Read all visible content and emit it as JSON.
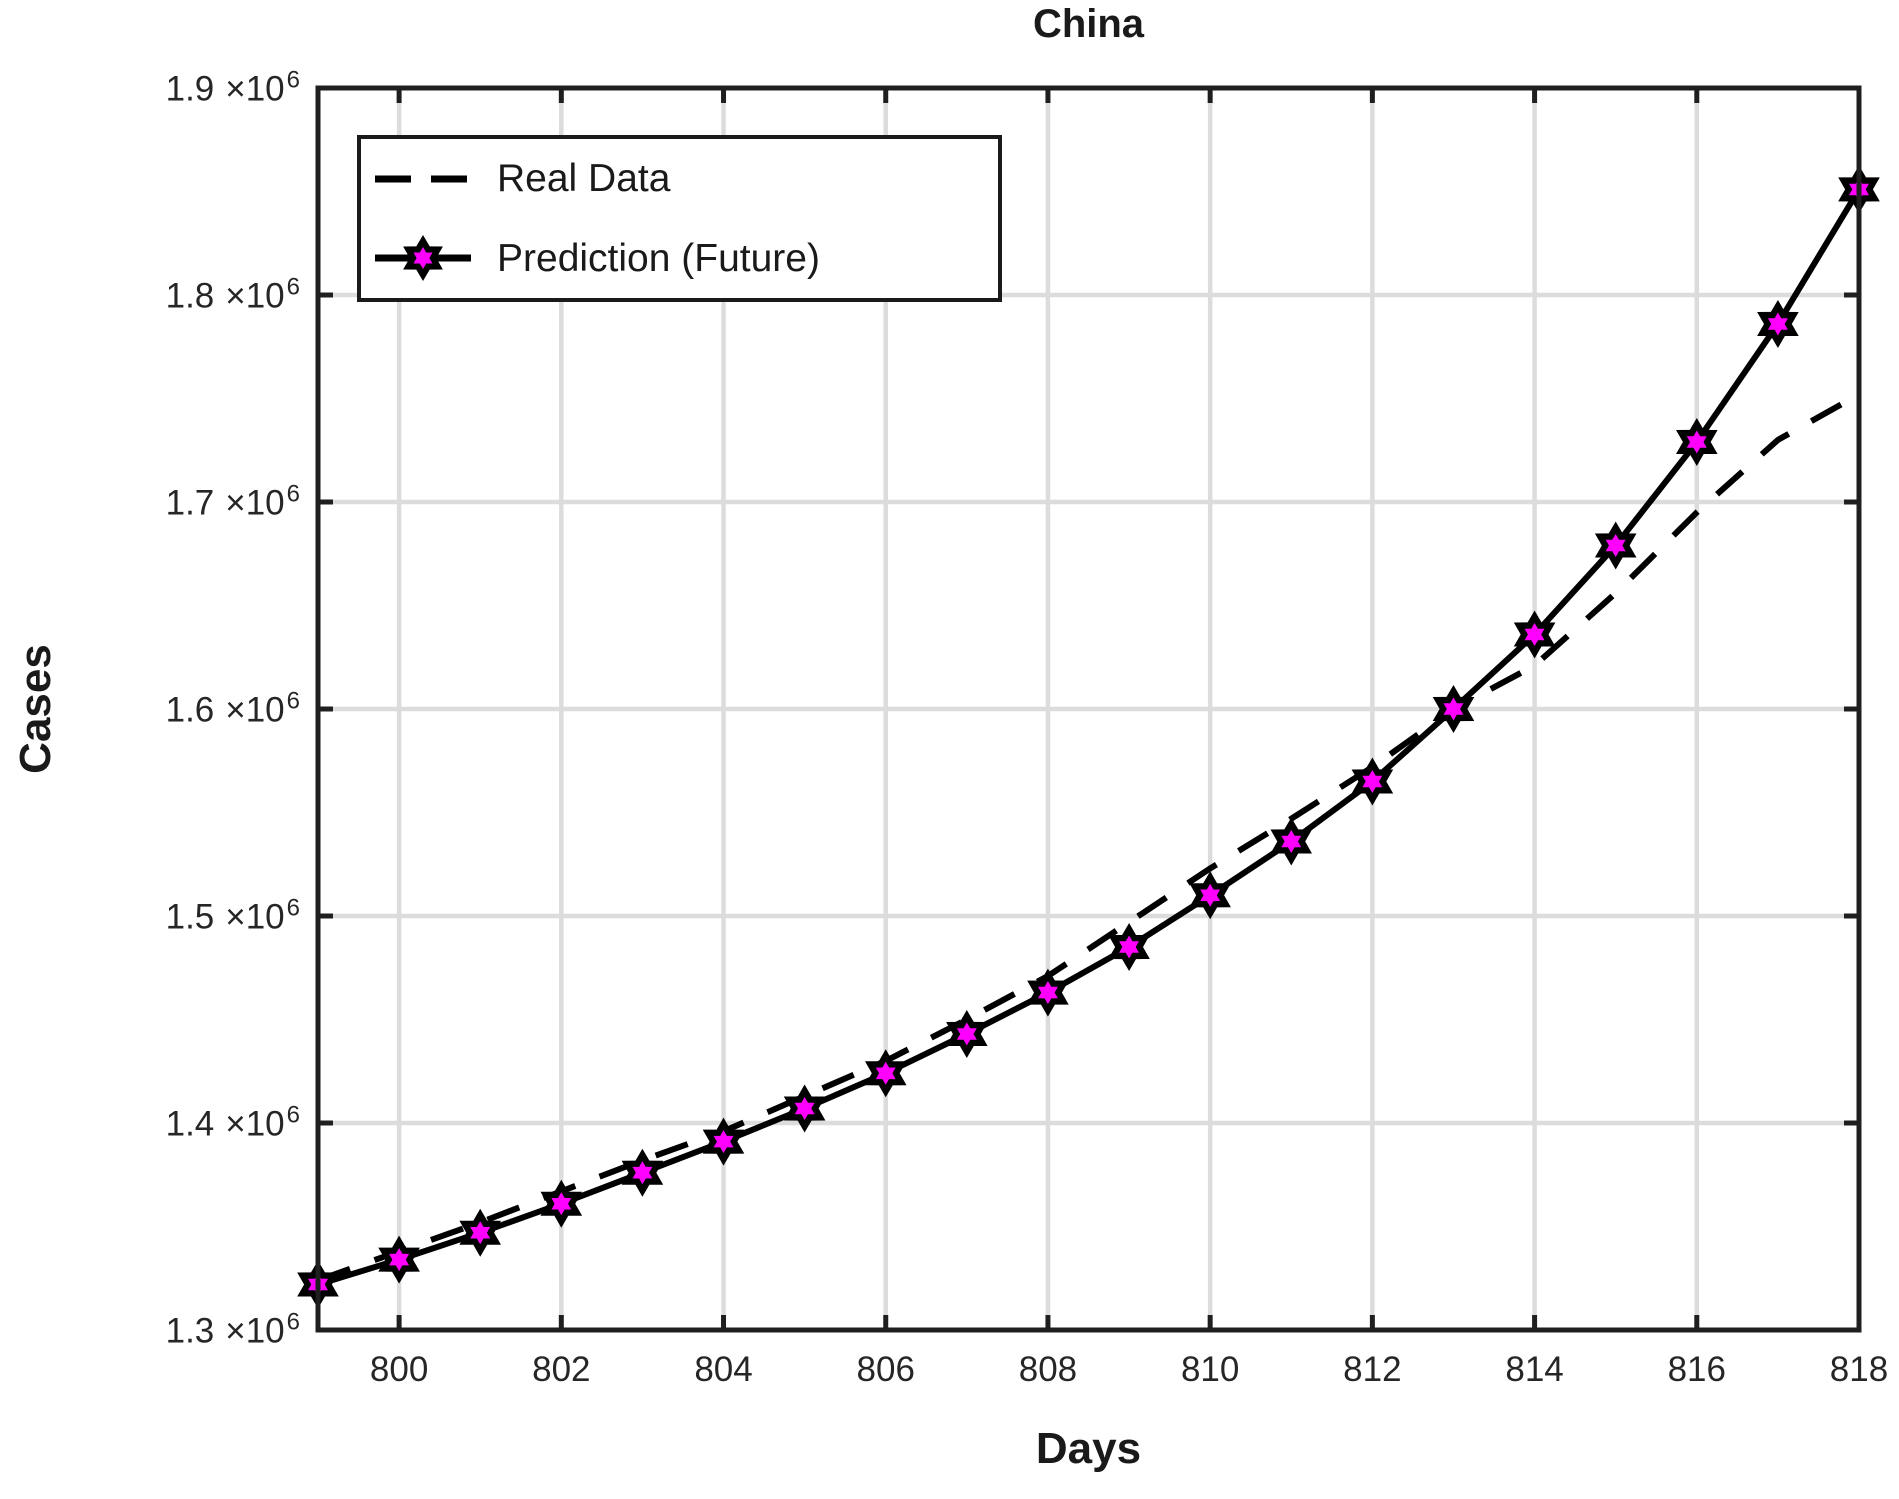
{
  "title": "China",
  "colors": {
    "line": "#000000",
    "marker_face": "#ff00ff",
    "marker_edge": "#000000",
    "grid": "#dcdcdc",
    "axis": "#1f1f1f",
    "text": "#262626",
    "background": "#ffffff"
  },
  "legend": {
    "position": "upper-left",
    "items": [
      {
        "label": "Real Data"
      },
      {
        "label": "Prediction (Future)"
      }
    ]
  },
  "chart_data": {
    "type": "line",
    "title": "China",
    "xlabel": "Days",
    "ylabel": "Cases",
    "xlim": [
      799,
      818
    ],
    "ylim": [
      1300000,
      1900000
    ],
    "xticks": [
      800,
      802,
      804,
      806,
      808,
      810,
      812,
      814,
      816,
      818
    ],
    "yticks": [
      1300000,
      1400000,
      1500000,
      1600000,
      1700000,
      1800000,
      1900000
    ],
    "ytick_multiplier_text": "×10",
    "ytick_exponent": "6",
    "grid": true,
    "legend_position": "upper-left",
    "x": [
      799,
      800,
      801,
      802,
      803,
      804,
      805,
      806,
      807,
      808,
      809,
      810,
      811,
      812,
      813,
      814,
      815,
      816,
      817,
      818
    ],
    "series": [
      {
        "name": "Real Data",
        "style": "dashed",
        "color": "#000000",
        "marker": "none",
        "values": [
          1324000,
          1338000,
          1352000,
          1367000,
          1382000,
          1396000,
          1413000,
          1430000,
          1450000,
          1471000,
          1497000,
          1523000,
          1547000,
          1572000,
          1600000,
          1621000,
          1656000,
          1695000,
          1730000,
          1752000
        ]
      },
      {
        "name": "Prediction (Future)",
        "style": "solid",
        "color": "#000000",
        "marker": "hexagram",
        "marker_face": "#ff00ff",
        "marker_edge": "#000000",
        "values": [
          1322000,
          1334000,
          1347000,
          1361000,
          1376000,
          1391000,
          1407000,
          1424000,
          1443000,
          1463000,
          1485000,
          1510000,
          1536000,
          1565000,
          1600000,
          1636000,
          1679000,
          1729000,
          1786000,
          1851000
        ]
      }
    ]
  }
}
